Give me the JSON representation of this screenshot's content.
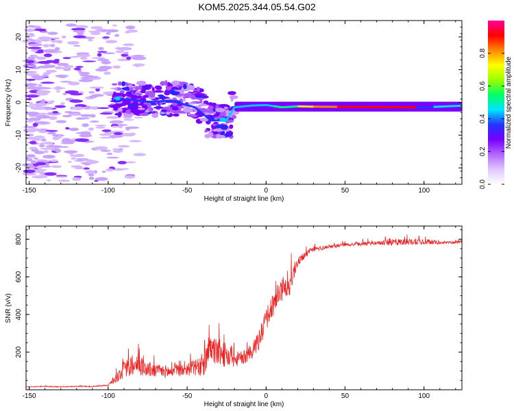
{
  "title": "KOM5.2025.344.05.54.G02",
  "chart_data": [
    {
      "type": "heatmap",
      "xlabel": "Height of straight line (km)",
      "ylabel": "Frequency (Hz)",
      "xlim": [
        -152,
        124
      ],
      "ylim": [
        -25,
        25
      ],
      "xticks": [
        -150,
        -100,
        -50,
        0,
        50,
        100
      ],
      "yticks": [
        -20,
        -10,
        0,
        10,
        20
      ],
      "colorbar": {
        "label": "Normalized spectral amplitude",
        "range": [
          0,
          1
        ],
        "ticks": [
          0.0,
          0.2,
          0.4,
          0.6,
          0.8
        ],
        "colormap": [
          "#ffffff",
          "#e0c8ff",
          "#b366ff",
          "#7700ff",
          "#2233ff",
          "#00e5ff",
          "#00ff66",
          "#99ff00",
          "#ffff00",
          "#ff8800",
          "#ff0000",
          "#ff0099"
        ]
      },
      "grid": false,
      "ridge": [
        {
          "x": -95,
          "y": 1.2
        },
        {
          "x": -85,
          "y": 0.8
        },
        {
          "x": -75,
          "y": 0.2
        },
        {
          "x": -60,
          "y": 0.5
        },
        {
          "x": -45,
          "y": -1.5
        },
        {
          "x": -35,
          "y": -5.5
        },
        {
          "x": -25,
          "y": -5.5
        },
        {
          "x": -20,
          "y": -1.5
        },
        {
          "x": -10,
          "y": -1.0
        },
        {
          "x": 0,
          "y": -0.8
        },
        {
          "x": 10,
          "y": -1.5
        },
        {
          "x": 20,
          "y": -1.2
        },
        {
          "x": 30,
          "y": -1.3
        },
        {
          "x": 60,
          "y": -1.4
        },
        {
          "x": 100,
          "y": -1.5
        },
        {
          "x": 124,
          "y": -1.0
        }
      ]
    },
    {
      "type": "line",
      "xlabel": "Height of straight line (km)",
      "ylabel": "SNR (v/v)",
      "xlim": [
        -152,
        124
      ],
      "ylim": [
        0,
        870
      ],
      "xticks": [
        -150,
        -100,
        -50,
        0,
        50,
        100
      ],
      "yticks": [
        200,
        400,
        600,
        800
      ],
      "grid": false,
      "series": [
        {
          "color": "#ee2222",
          "x": [
            -152,
            -140,
            -130,
            -120,
            -110,
            -100,
            -95,
            -90,
            -85,
            -80,
            -75,
            -70,
            -60,
            -50,
            -40,
            -35,
            -30,
            -25,
            -20,
            -15,
            -10,
            -5,
            0,
            5,
            10,
            15,
            20,
            25,
            30,
            40,
            50,
            60,
            70,
            80,
            90,
            100,
            110,
            124
          ],
          "values": [
            15,
            18,
            15,
            18,
            16,
            25,
            60,
            110,
            120,
            130,
            110,
            100,
            95,
            110,
            120,
            210,
            200,
            180,
            160,
            170,
            190,
            250,
            360,
            470,
            530,
            560,
            680,
            720,
            745,
            760,
            770,
            775,
            780,
            785,
            785,
            790,
            780,
            785
          ],
          "jitter": [
            2,
            4,
            3,
            4,
            3,
            5,
            40,
            80,
            90,
            90,
            70,
            60,
            55,
            60,
            90,
            130,
            120,
            110,
            70,
            60,
            70,
            90,
            110,
            110,
            100,
            100,
            40,
            30,
            20,
            15,
            15,
            15,
            15,
            35,
            25,
            30,
            12,
            12
          ]
        }
      ]
    }
  ]
}
